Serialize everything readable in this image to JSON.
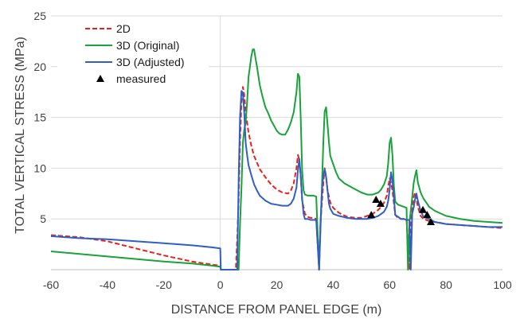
{
  "chart_data": {
    "type": "line",
    "xlabel": "DISTANCE FROM PANEL EDGE (m)",
    "ylabel": "TOTAL VERTICAL STRESS (MPa)",
    "xlim": [
      -60,
      100
    ],
    "ylim": [
      0,
      25
    ],
    "xticks": [
      -60,
      -40,
      -20,
      0,
      20,
      40,
      60,
      80,
      100
    ],
    "yticks": [
      5,
      10,
      15,
      20,
      25
    ],
    "grid": "horizontal",
    "legend_position": "top-left",
    "series": [
      {
        "name": "2D",
        "color": "#e8211d",
        "style": "dashed",
        "x": [
          -60,
          -50,
          -40,
          -30,
          -20,
          -10,
          -3,
          0,
          0.2,
          5.5,
          6,
          6.5,
          7,
          7.5,
          8,
          8.5,
          9,
          10,
          11,
          12,
          14,
          16,
          18,
          20,
          22,
          24,
          25,
          26,
          27,
          27.5,
          28,
          28.5,
          29,
          30,
          31,
          32,
          33,
          34,
          35,
          35.5,
          36,
          36.5,
          37,
          37.5,
          38,
          39,
          40,
          42,
          45,
          48,
          50,
          52,
          54,
          56,
          57,
          58,
          59,
          59.5,
          60,
          60.5,
          61,
          62,
          63,
          64,
          65,
          66,
          67,
          67.5,
          68,
          68.5,
          69,
          69.5,
          70,
          71,
          72,
          74,
          76,
          80,
          85,
          90,
          95,
          100
        ],
        "y": [
          3.4,
          3.2,
          2.8,
          2.1,
          1.4,
          0.8,
          0.5,
          0.4,
          0,
          0,
          3,
          7,
          12.5,
          16.5,
          18,
          17.2,
          15.5,
          13.5,
          12.2,
          11.2,
          9.9,
          9.1,
          8.4,
          7.9,
          7.6,
          7.5,
          7.8,
          8.5,
          10,
          11.3,
          10.8,
          9.2,
          6.8,
          5.5,
          5.2,
          5.1,
          5.1,
          5,
          0,
          4.5,
          6.6,
          8.5,
          10,
          9.2,
          7.8,
          6.6,
          6.1,
          5.6,
          5.2,
          5.1,
          5.1,
          5.3,
          5.5,
          5.9,
          6.2,
          6.6,
          7.3,
          8.2,
          9,
          8.6,
          7.8,
          5.4,
          5.1,
          5,
          5,
          4.9,
          0,
          5,
          6.1,
          7.1,
          7.6,
          7,
          6.2,
          5.3,
          5,
          4.8,
          4.7,
          4.5,
          4.4,
          4.3,
          4.2,
          4.1
        ]
      },
      {
        "name": "3D (Original)",
        "color": "#18a33a",
        "style": "solid",
        "x": [
          -60,
          -40,
          -20,
          -10,
          -3,
          0,
          0.2,
          6.5,
          7,
          7.5,
          8,
          8.5,
          9,
          9.5,
          10,
          11,
          11.5,
          12,
          12.5,
          13,
          14,
          15,
          16,
          17,
          18,
          19,
          20,
          21,
          22,
          23,
          24,
          25,
          26,
          27,
          27.5,
          28,
          28.5,
          29,
          29.5,
          30,
          31,
          32,
          33,
          34,
          35,
          35.5,
          36,
          36.5,
          37,
          37.5,
          38,
          38.5,
          39,
          40,
          41,
          42,
          44,
          46,
          48,
          50,
          52,
          54,
          56,
          57,
          58,
          59,
          59.5,
          60,
          60.5,
          61,
          61.5,
          62,
          63,
          64,
          65,
          66,
          66.5,
          67,
          67.5,
          68,
          68.5,
          69,
          69.5,
          70,
          71,
          72,
          74,
          76,
          80,
          85,
          90,
          95,
          100
        ],
        "y": [
          1.8,
          1.3,
          0.8,
          0.6,
          0.4,
          0.3,
          0,
          0,
          4.5,
          8,
          12.5,
          13.8,
          14.5,
          16.5,
          19,
          21,
          21.7,
          21.7,
          20.8,
          20,
          18.2,
          17,
          16,
          15.4,
          14.7,
          14.2,
          13.7,
          13.4,
          13.3,
          13.3,
          13.8,
          14.5,
          15.5,
          17.5,
          19.3,
          19,
          15,
          9.8,
          7.8,
          7.4,
          7.3,
          7.3,
          7.3,
          7.2,
          0,
          3.8,
          8,
          12.5,
          15.6,
          16,
          14.3,
          12.5,
          11.2,
          10.4,
          9.6,
          9,
          8.5,
          8.2,
          7.9,
          7.6,
          7.4,
          7.4,
          7.6,
          7.9,
          8.4,
          9.2,
          10.5,
          12.5,
          13,
          11.3,
          8.3,
          6.7,
          6.4,
          6.3,
          6.2,
          6.1,
          0,
          4.6,
          5.8,
          7.1,
          8.5,
          9.2,
          9.8,
          8.6,
          7.6,
          7,
          6.2,
          5.8,
          5.3,
          5,
          4.8,
          4.7,
          4.6
        ]
      },
      {
        "name": "3D (Adjusted)",
        "color": "#2f5fc4",
        "style": "solid",
        "x": [
          -60,
          -50,
          -40,
          -30,
          -20,
          -10,
          -3,
          0,
          0.2,
          6,
          6.5,
          7,
          7.5,
          8,
          8.5,
          9,
          9.5,
          10,
          11,
          12,
          13,
          14,
          16,
          18,
          20,
          22,
          24,
          25,
          26,
          27,
          27.5,
          28,
          28.5,
          29,
          29.5,
          30,
          31,
          32,
          33,
          34,
          35,
          35.5,
          36,
          36.5,
          37,
          37.5,
          38,
          38.5,
          39,
          40,
          42,
          45,
          48,
          50,
          52,
          54,
          56,
          58,
          59,
          59.5,
          60,
          60.5,
          61,
          61.5,
          62,
          63,
          64,
          65,
          66,
          67,
          67.5,
          68,
          68.5,
          69,
          69.5,
          70,
          71,
          72,
          74,
          76,
          80,
          85,
          90,
          95,
          100
        ],
        "y": [
          3.3,
          3.1,
          3,
          2.8,
          2.6,
          2.4,
          2.2,
          2.1,
          0,
          0,
          9,
          15,
          17.6,
          17.4,
          15.5,
          12.5,
          11.3,
          10.3,
          9.3,
          8.4,
          7.8,
          7.3,
          6.8,
          6.5,
          6.4,
          6.3,
          6.3,
          6.5,
          7,
          8.1,
          9.8,
          10.9,
          9.3,
          7,
          5.5,
          5,
          5,
          4.9,
          4.9,
          4.9,
          0,
          4.5,
          7.7,
          9.3,
          9.9,
          9.1,
          7.8,
          6.5,
          6,
          5.5,
          5.3,
          5.1,
          5,
          5,
          5,
          5.1,
          5.3,
          5.7,
          6.2,
          6.8,
          7.9,
          9.6,
          8.8,
          7.2,
          5.4,
          5.2,
          5,
          5,
          4.9,
          4.9,
          0,
          5.5,
          6.1,
          6.9,
          7.5,
          6.8,
          5.8,
          5.2,
          5,
          4.7,
          4.5,
          4.4,
          4.3,
          4.2,
          4.2
        ]
      },
      {
        "name": "measured",
        "color": "#000000",
        "style": "marker",
        "x": [
          53.5,
          55.2,
          56.8,
          71.8,
          73.3,
          74.6
        ],
        "y": [
          5.4,
          6.9,
          6.5,
          5.9,
          5.4,
          4.7
        ]
      }
    ]
  }
}
